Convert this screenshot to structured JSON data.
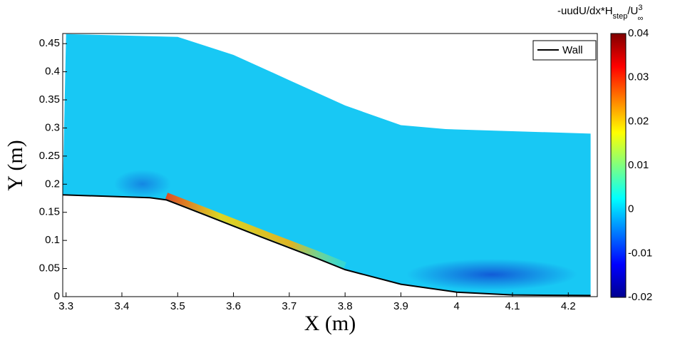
{
  "chart_data": {
    "type": "contour",
    "x_label": "X (m)",
    "y_label": "Y (m)",
    "colorbar_label": {
      "main": "-uudU/dx*H",
      "sub": "step",
      "mid": "/U",
      "sup": "3",
      "sub2": "∞"
    },
    "xlim": [
      3.294,
      4.252
    ],
    "ylim": [
      0,
      0.468
    ],
    "xticks": [
      3.3,
      3.4,
      3.5,
      3.6,
      3.7,
      3.8,
      3.9,
      4,
      4.1,
      4.2
    ],
    "yticks": [
      0,
      0.05,
      0.1,
      0.15,
      0.2,
      0.25,
      0.3,
      0.35,
      0.4,
      0.45
    ],
    "clim": [
      -0.02,
      0.04
    ],
    "cticks": [
      -0.02,
      -0.01,
      0,
      0.01,
      0.02,
      0.03,
      0.04
    ],
    "field": {
      "x": [
        3.3,
        3.5,
        3.6,
        3.7,
        3.8,
        3.9,
        3.98,
        4.24
      ],
      "top": [
        0.467,
        0.462,
        0.43,
        0.385,
        0.34,
        0.305,
        0.298,
        0.29
      ]
    },
    "series": [
      {
        "name": "Wall",
        "color": "#000000",
        "x": [
          3.294,
          3.45,
          3.48,
          3.55,
          3.65,
          3.75,
          3.8,
          3.9,
          4.0,
          4.1,
          4.24
        ],
        "values": [
          0.181,
          0.176,
          0.172,
          0.145,
          0.106,
          0.068,
          0.048,
          0.022,
          0.008,
          0.003,
          0.002
        ]
      }
    ],
    "legend": "upper right"
  }
}
